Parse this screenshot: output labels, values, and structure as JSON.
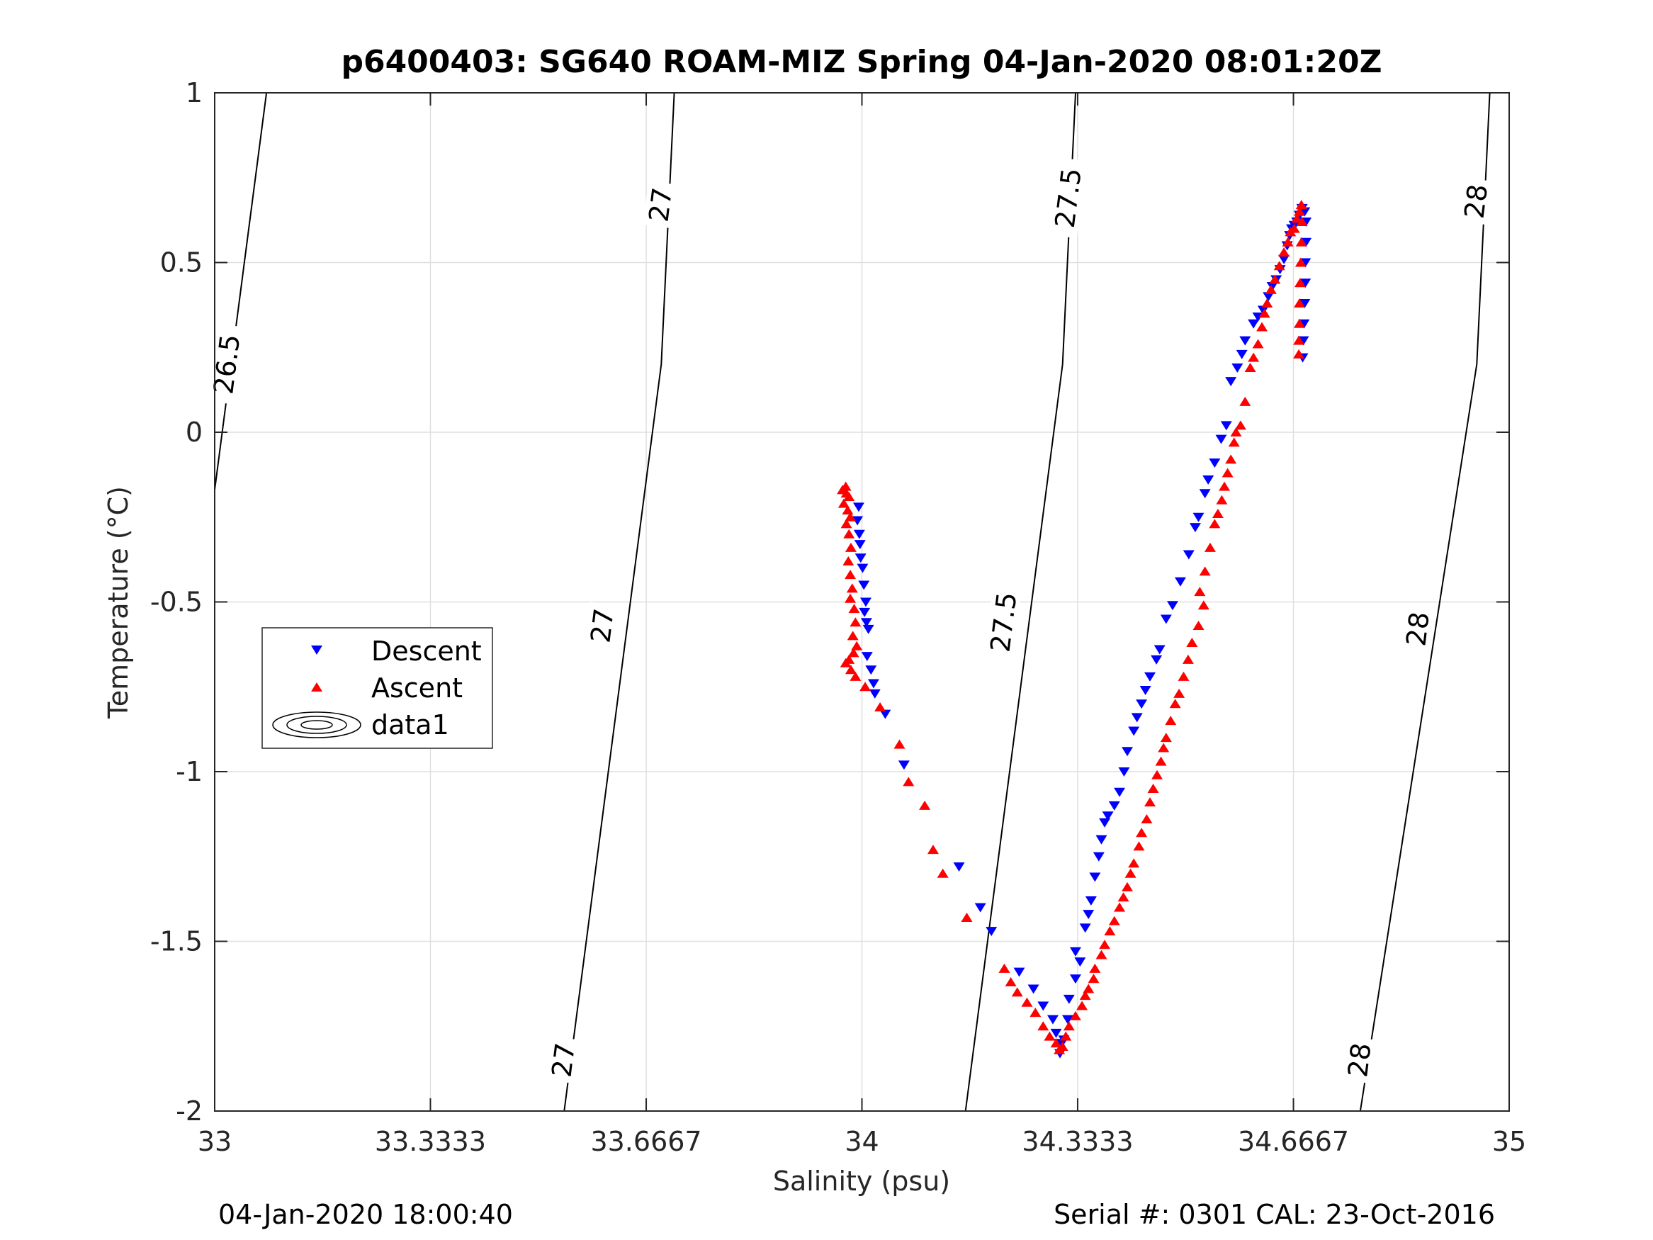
{
  "chart_data": {
    "type": "scatter",
    "title": "p6400403: SG640 ROAM-MIZ Spring 04-Jan-2020 08:01:20Z",
    "xlabel": "Salinity (psu)",
    "ylabel": "Temperature (°C)",
    "xlim": [
      33,
      35
    ],
    "ylim": [
      -2,
      1
    ],
    "xticks": [
      33,
      33.3333,
      33.6667,
      34,
      34.3333,
      34.6667,
      35
    ],
    "xtick_labels": [
      "33",
      "33.3333",
      "33.6667",
      "34",
      "34.3333",
      "34.6667",
      "35"
    ],
    "yticks": [
      -2,
      -1.5,
      -1,
      -0.5,
      0,
      0.5,
      1
    ],
    "ytick_labels": [
      "-2",
      "-1.5",
      "-1",
      "-0.5",
      "0",
      "0.5",
      "1"
    ],
    "grid": true,
    "legend": {
      "placement": "left",
      "entries": [
        {
          "name": "Descent",
          "marker": "triangle-down",
          "color": "#0000ff"
        },
        {
          "name": "Ascent",
          "marker": "triangle-up",
          "color": "#ff0000"
        },
        {
          "name": "data1",
          "marker": "contour",
          "color": "#000000"
        }
      ]
    },
    "density_contours": [
      {
        "value": "26.5",
        "points": [
          [
            33,
            -0.17
          ],
          [
            33.08,
            1.0
          ]
        ],
        "labels": [
          {
            "text": "26.5",
            "x": 33.02,
            "y": 0.2
          }
        ]
      },
      {
        "value": "27",
        "points": [
          [
            33.54,
            -2.0
          ],
          [
            33.69,
            0.2
          ],
          [
            33.71,
            1.0
          ]
        ],
        "labels": [
          {
            "text": "27",
            "x": 33.69,
            "y": 0.67
          },
          {
            "text": "27",
            "x": 33.6,
            "y": -0.57
          },
          {
            "text": "27",
            "x": 33.54,
            "y": -1.85
          }
        ]
      },
      {
        "value": "27.5",
        "points": [
          [
            34.16,
            -2.0
          ],
          [
            34.31,
            0.2
          ],
          [
            34.33,
            1.0
          ]
        ],
        "labels": [
          {
            "text": "27.5",
            "x": 34.32,
            "y": 0.69
          },
          {
            "text": "27.5",
            "x": 34.22,
            "y": -0.56
          }
        ]
      },
      {
        "value": "28",
        "points": [
          [
            34.77,
            -2.0
          ],
          [
            34.95,
            0.2
          ],
          [
            34.97,
            1.0
          ]
        ],
        "labels": [
          {
            "text": "28",
            "x": 34.95,
            "y": 0.68
          },
          {
            "text": "28",
            "x": 34.86,
            "y": -0.58
          },
          {
            "text": "28",
            "x": 34.77,
            "y": -1.85
          }
        ]
      }
    ],
    "series": [
      {
        "name": "Descent",
        "marker": "triangle-down",
        "color": "#0000ff",
        "points": [
          [
            33.995,
            -0.22
          ],
          [
            33.993,
            -0.26
          ],
          [
            33.996,
            -0.3
          ],
          [
            33.997,
            -0.33
          ],
          [
            33.998,
            -0.37
          ],
          [
            34.001,
            -0.4
          ],
          [
            34.003,
            -0.45
          ],
          [
            34.006,
            -0.5
          ],
          [
            34.004,
            -0.53
          ],
          [
            34.007,
            -0.56
          ],
          [
            34.01,
            -0.58
          ],
          [
            34.008,
            -0.66
          ],
          [
            34.014,
            -0.7
          ],
          [
            34.018,
            -0.74
          ],
          [
            34.02,
            -0.77
          ],
          [
            34.036,
            -0.83
          ],
          [
            34.065,
            -0.98
          ],
          [
            34.15,
            -1.28
          ],
          [
            34.183,
            -1.4
          ],
          [
            34.2,
            -1.47
          ],
          [
            34.243,
            -1.59
          ],
          [
            34.265,
            -1.64
          ],
          [
            34.28,
            -1.69
          ],
          [
            34.295,
            -1.73
          ],
          [
            34.3,
            -1.77
          ],
          [
            34.305,
            -1.8
          ],
          [
            34.306,
            -1.83
          ],
          [
            34.312,
            -1.79
          ],
          [
            34.318,
            -1.73
          ],
          [
            34.32,
            -1.67
          ],
          [
            34.33,
            -1.61
          ],
          [
            34.337,
            -1.56
          ],
          [
            34.33,
            -1.53
          ],
          [
            34.345,
            -1.46
          ],
          [
            34.35,
            -1.42
          ],
          [
            34.354,
            -1.38
          ],
          [
            34.36,
            -1.31
          ],
          [
            34.366,
            -1.25
          ],
          [
            34.37,
            -1.2
          ],
          [
            34.375,
            -1.15
          ],
          [
            34.38,
            -1.13
          ],
          [
            34.39,
            -1.1
          ],
          [
            34.398,
            -1.06
          ],
          [
            34.405,
            -1.0
          ],
          [
            34.41,
            -0.94
          ],
          [
            34.42,
            -0.88
          ],
          [
            34.425,
            -0.84
          ],
          [
            34.432,
            -0.8
          ],
          [
            34.438,
            -0.76
          ],
          [
            34.445,
            -0.72
          ],
          [
            34.455,
            -0.67
          ],
          [
            34.46,
            -0.64
          ],
          [
            34.47,
            -0.55
          ],
          [
            34.48,
            -0.51
          ],
          [
            34.492,
            -0.44
          ],
          [
            34.505,
            -0.36
          ],
          [
            34.515,
            -0.28
          ],
          [
            34.52,
            -0.25
          ],
          [
            34.53,
            -0.18
          ],
          [
            34.535,
            -0.14
          ],
          [
            34.545,
            -0.09
          ],
          [
            34.555,
            -0.02
          ],
          [
            34.563,
            0.02
          ],
          [
            34.57,
            0.15
          ],
          [
            34.58,
            0.19
          ],
          [
            34.587,
            0.23
          ],
          [
            34.592,
            0.27
          ],
          [
            34.605,
            0.32
          ],
          [
            34.612,
            0.34
          ],
          [
            34.62,
            0.36
          ],
          [
            34.628,
            0.4
          ],
          [
            34.634,
            0.43
          ],
          [
            34.64,
            0.45
          ],
          [
            34.646,
            0.48
          ],
          [
            34.652,
            0.51
          ],
          [
            34.657,
            0.55
          ],
          [
            34.661,
            0.58
          ],
          [
            34.664,
            0.6
          ],
          [
            34.668,
            0.61
          ],
          [
            34.672,
            0.62
          ],
          [
            34.676,
            0.64
          ],
          [
            34.68,
            0.66
          ],
          [
            34.684,
            0.65
          ],
          [
            34.686,
            0.62
          ],
          [
            34.686,
            0.56
          ],
          [
            34.685,
            0.5
          ],
          [
            34.685,
            0.44
          ],
          [
            34.684,
            0.38
          ],
          [
            34.683,
            0.32
          ],
          [
            34.682,
            0.27
          ],
          [
            34.681,
            0.22
          ]
        ]
      },
      {
        "name": "Ascent",
        "marker": "triangle-up",
        "color": "#ff0000",
        "points": [
          [
            33.975,
            -0.16
          ],
          [
            33.97,
            -0.17
          ],
          [
            33.976,
            -0.18
          ],
          [
            33.98,
            -0.19
          ],
          [
            33.972,
            -0.21
          ],
          [
            33.978,
            -0.23
          ],
          [
            33.982,
            -0.25
          ],
          [
            33.976,
            -0.27
          ],
          [
            33.98,
            -0.3
          ],
          [
            33.983,
            -0.34
          ],
          [
            33.979,
            -0.38
          ],
          [
            33.982,
            -0.42
          ],
          [
            33.985,
            -0.46
          ],
          [
            33.982,
            -0.49
          ],
          [
            33.988,
            -0.52
          ],
          [
            33.99,
            -0.56
          ],
          [
            33.986,
            -0.6
          ],
          [
            33.992,
            -0.63
          ],
          [
            33.987,
            -0.65
          ],
          [
            33.98,
            -0.67
          ],
          [
            33.975,
            -0.68
          ],
          [
            33.983,
            -0.7
          ],
          [
            33.99,
            -0.72
          ],
          [
            34.005,
            -0.75
          ],
          [
            34.028,
            -0.81
          ],
          [
            34.058,
            -0.92
          ],
          [
            34.072,
            -1.03
          ],
          [
            34.097,
            -1.1
          ],
          [
            34.11,
            -1.23
          ],
          [
            34.125,
            -1.3
          ],
          [
            34.162,
            -1.43
          ],
          [
            34.22,
            -1.58
          ],
          [
            34.23,
            -1.62
          ],
          [
            34.24,
            -1.65
          ],
          [
            34.255,
            -1.68
          ],
          [
            34.268,
            -1.71
          ],
          [
            34.28,
            -1.75
          ],
          [
            34.29,
            -1.78
          ],
          [
            34.3,
            -1.8
          ],
          [
            34.305,
            -1.82
          ],
          [
            34.31,
            -1.81
          ],
          [
            34.315,
            -1.78
          ],
          [
            34.32,
            -1.75
          ],
          [
            34.33,
            -1.72
          ],
          [
            34.34,
            -1.69
          ],
          [
            34.345,
            -1.66
          ],
          [
            34.35,
            -1.64
          ],
          [
            34.358,
            -1.61
          ],
          [
            34.36,
            -1.58
          ],
          [
            34.37,
            -1.54
          ],
          [
            34.375,
            -1.51
          ],
          [
            34.383,
            -1.47
          ],
          [
            34.39,
            -1.44
          ],
          [
            34.398,
            -1.4
          ],
          [
            34.404,
            -1.37
          ],
          [
            34.41,
            -1.34
          ],
          [
            34.415,
            -1.3
          ],
          [
            34.42,
            -1.27
          ],
          [
            34.428,
            -1.22
          ],
          [
            34.432,
            -1.18
          ],
          [
            34.44,
            -1.14
          ],
          [
            34.445,
            -1.09
          ],
          [
            34.45,
            -1.05
          ],
          [
            34.456,
            -1.01
          ],
          [
            34.462,
            -0.97
          ],
          [
            34.466,
            -0.93
          ],
          [
            34.47,
            -0.9
          ],
          [
            34.477,
            -0.85
          ],
          [
            34.484,
            -0.8
          ],
          [
            34.49,
            -0.77
          ],
          [
            34.497,
            -0.72
          ],
          [
            34.504,
            -0.67
          ],
          [
            34.51,
            -0.62
          ],
          [
            34.52,
            -0.57
          ],
          [
            34.528,
            -0.51
          ],
          [
            34.522,
            -0.47
          ],
          [
            34.53,
            -0.41
          ],
          [
            34.538,
            -0.34
          ],
          [
            34.545,
            -0.27
          ],
          [
            34.55,
            -0.24
          ],
          [
            34.556,
            -0.2
          ],
          [
            34.56,
            -0.16
          ],
          [
            34.565,
            -0.12
          ],
          [
            34.57,
            -0.08
          ],
          [
            34.575,
            -0.03
          ],
          [
            34.578,
            0.0
          ],
          [
            34.585,
            0.02
          ],
          [
            34.592,
            0.09
          ],
          [
            34.6,
            0.19
          ],
          [
            34.605,
            0.22
          ],
          [
            34.612,
            0.26
          ],
          [
            34.618,
            0.31
          ],
          [
            34.622,
            0.35
          ],
          [
            34.626,
            0.38
          ],
          [
            34.632,
            0.42
          ],
          [
            34.638,
            0.45
          ],
          [
            34.645,
            0.49
          ],
          [
            34.652,
            0.53
          ],
          [
            34.658,
            0.56
          ],
          [
            34.662,
            0.59
          ],
          [
            34.668,
            0.6
          ],
          [
            34.672,
            0.63
          ],
          [
            34.676,
            0.65
          ],
          [
            34.679,
            0.67
          ],
          [
            34.68,
            0.62
          ],
          [
            34.679,
            0.56
          ],
          [
            34.678,
            0.5
          ],
          [
            34.677,
            0.44
          ],
          [
            34.676,
            0.38
          ],
          [
            34.676,
            0.32
          ],
          [
            34.675,
            0.27
          ],
          [
            34.675,
            0.23
          ]
        ]
      }
    ]
  },
  "footer": {
    "left": "04-Jan-2020 18:00:40",
    "right": "Serial #: 0301  CAL: 23-Oct-2016"
  }
}
